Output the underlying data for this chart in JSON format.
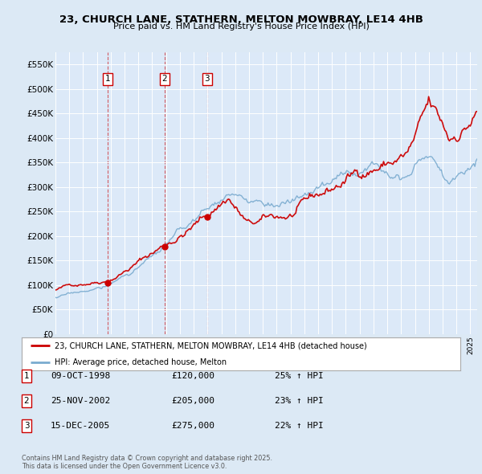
{
  "title": "23, CHURCH LANE, STATHERN, MELTON MOWBRAY, LE14 4HB",
  "subtitle": "Price paid vs. HM Land Registry's House Price Index (HPI)",
  "bg_color": "#dce9f5",
  "plot_bg_color": "#dce9f8",
  "red_line_label": "23, CHURCH LANE, STATHERN, MELTON MOWBRAY, LE14 4HB (detached house)",
  "blue_line_label": "HPI: Average price, detached house, Melton",
  "purchases": [
    {
      "num": 1,
      "date_label": "09-OCT-1998",
      "date_x": 1998.77,
      "price": 120000,
      "hpi_pct": "25% ↑ HPI"
    },
    {
      "num": 2,
      "date_label": "25-NOV-2002",
      "date_x": 2002.9,
      "price": 205000,
      "hpi_pct": "23% ↑ HPI"
    },
    {
      "num": 3,
      "date_label": "15-DEC-2005",
      "date_x": 2005.96,
      "price": 275000,
      "hpi_pct": "22% ↑ HPI"
    }
  ],
  "ylim": [
    0,
    575000
  ],
  "xlim_start": 1995.0,
  "xlim_end": 2025.5,
  "yticks": [
    0,
    50000,
    100000,
    150000,
    200000,
    250000,
    300000,
    350000,
    400000,
    450000,
    500000,
    550000
  ],
  "ytick_labels": [
    "£0",
    "£50K",
    "£100K",
    "£150K",
    "£200K",
    "£250K",
    "£300K",
    "£350K",
    "£400K",
    "£450K",
    "£500K",
    "£550K"
  ],
  "footer": "Contains HM Land Registry data © Crown copyright and database right 2025.\nThis data is licensed under the Open Government Licence v3.0.",
  "red_color": "#cc0000",
  "blue_color": "#7aabcf",
  "dashed_color": "#cc0000"
}
